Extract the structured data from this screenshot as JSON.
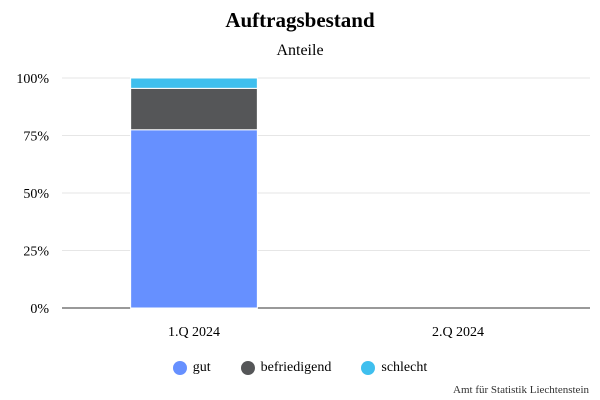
{
  "chart_data": {
    "type": "bar",
    "stacked": true,
    "title": "Auftragsbestand",
    "subtitle": "Anteile",
    "categories": [
      "1.Q 2024",
      "2.Q 2024"
    ],
    "y_ticks": [
      "0%",
      "25%",
      "50%",
      "75%",
      "100%"
    ],
    "ylim": [
      0,
      100
    ],
    "grid": true,
    "legend_position": "bottom",
    "series": [
      {
        "name": "gut",
        "color": "#6690ff",
        "values": [
          77.5,
          null
        ]
      },
      {
        "name": "befriedigend",
        "color": "#555658",
        "values": [
          18,
          null
        ]
      },
      {
        "name": "schlecht",
        "color": "#3fbfee",
        "values": [
          4.5,
          null
        ]
      }
    ]
  },
  "credit": "Amt für Statistik Liechtenstein"
}
